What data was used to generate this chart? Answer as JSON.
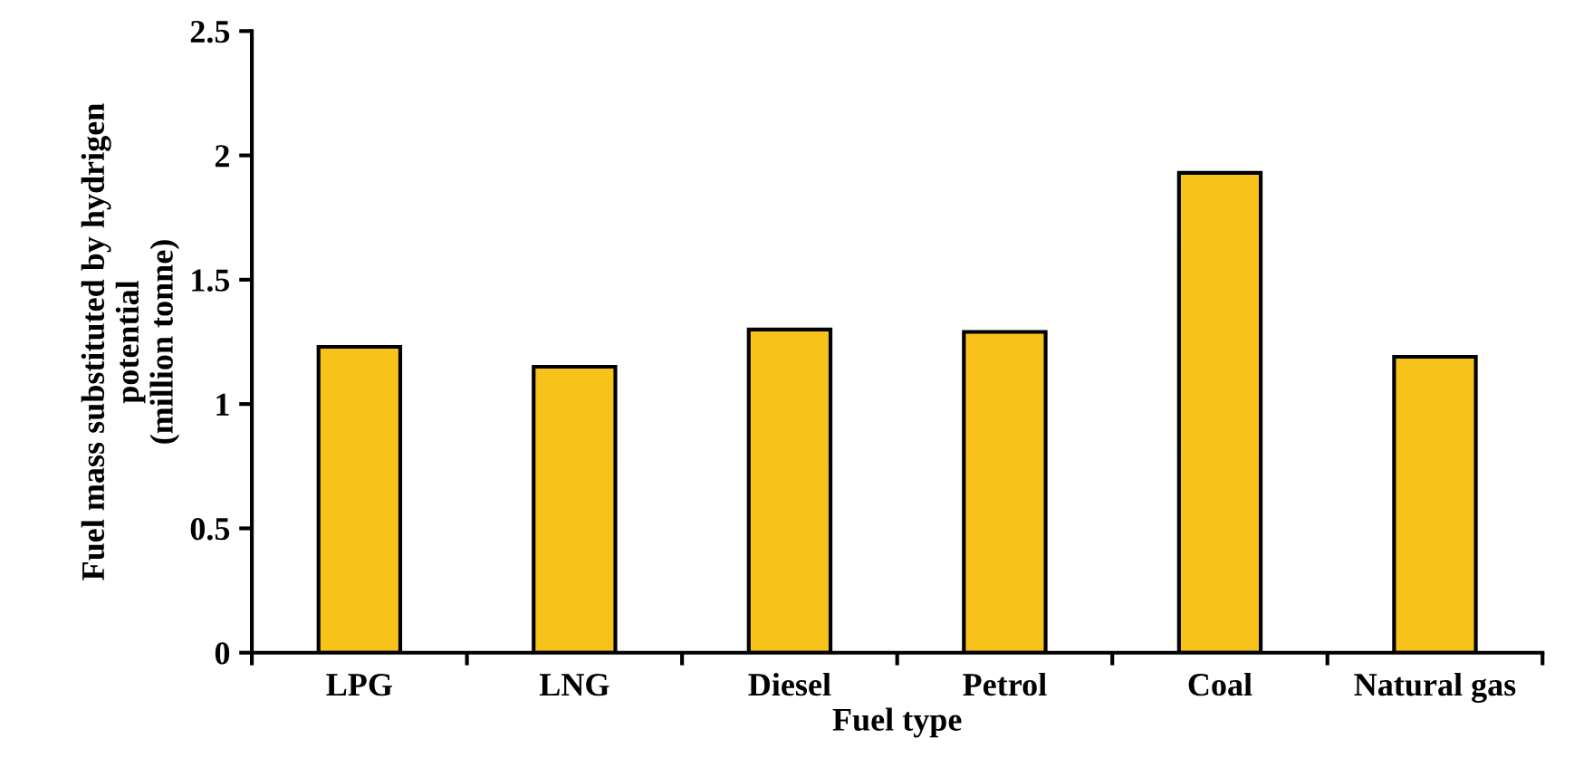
{
  "chart_data": {
    "type": "bar",
    "xlabel": "Fuel type",
    "ylabel": "Fuel mass substituted by hydrigen\npotential\n(million tonne)",
    "categories": [
      "LPG",
      "LNG",
      "Diesel",
      "Petrol",
      "Coal",
      "Natural gas"
    ],
    "values": [
      1.23,
      1.15,
      1.3,
      1.29,
      1.93,
      1.19
    ],
    "color": "#f7c21a",
    "ylim": [
      0,
      2.5
    ],
    "yticks": [
      0,
      0.5,
      1,
      1.5,
      2,
      2.5
    ],
    "grid": false
  }
}
